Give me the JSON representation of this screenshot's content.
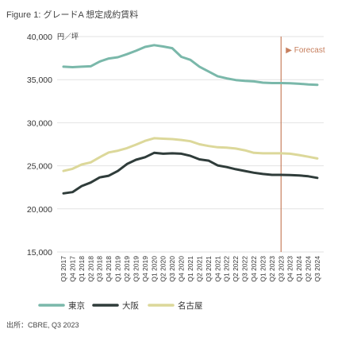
{
  "chart_data": {
    "type": "line",
    "title": "Figure 1: グレードA 想定成約賃料",
    "unit_label": "円／坪",
    "source": "出所：CBRE, Q3 2023",
    "forecast_label": "▶ Forecast",
    "forecast_start": "Q3 2023",
    "ylim": [
      15000,
      40000
    ],
    "yticks": [
      "15,000",
      "20,000",
      "25,000",
      "30,000",
      "35,000",
      "40,000"
    ],
    "ytick_values": [
      15000,
      20000,
      25000,
      30000,
      35000,
      40000
    ],
    "grid": true,
    "legend_position": "bottom",
    "x": [
      "Q3 2017",
      "Q4 2017",
      "Q1 2018",
      "Q2 2018",
      "Q3 2018",
      "Q4 2018",
      "Q1 2019",
      "Q2 2019",
      "Q3 2019",
      "Q4 2019",
      "Q1 2020",
      "Q2 2020",
      "Q3 2020",
      "Q4 2020",
      "Q1 2021",
      "Q2 2021",
      "Q3 2021",
      "Q4 2021",
      "Q1 2022",
      "Q2 2022",
      "Q3 2022",
      "Q4 2022",
      "Q1 2023",
      "Q2 2023",
      "Q3 2023",
      "Q4 2023",
      "Q1 2024",
      "Q2 2024",
      "Q3 2024"
    ],
    "series": [
      {
        "name": "東京",
        "color": "#7ab8aa",
        "values": [
          36500,
          36450,
          36500,
          36550,
          37100,
          37450,
          37600,
          37950,
          38350,
          38800,
          39000,
          38850,
          38650,
          37650,
          37300,
          36500,
          35950,
          35400,
          35150,
          34950,
          34850,
          34800,
          34650,
          34600,
          34600,
          34580,
          34520,
          34450,
          34400
        ]
      },
      {
        "name": "大阪",
        "color": "#2f3c3a",
        "values": [
          21800,
          21950,
          22650,
          23050,
          23650,
          23850,
          24400,
          25200,
          25700,
          26000,
          26500,
          26400,
          26450,
          26400,
          26150,
          25750,
          25600,
          25050,
          24850,
          24600,
          24400,
          24200,
          24050,
          23950,
          23950,
          23930,
          23880,
          23780,
          23600
        ]
      },
      {
        "name": "名古屋",
        "color": "#dcd89a",
        "values": [
          24400,
          24650,
          25150,
          25400,
          26000,
          26550,
          26750,
          27050,
          27450,
          27900,
          28200,
          28150,
          28100,
          28000,
          27850,
          27500,
          27300,
          27150,
          27100,
          27000,
          26800,
          26500,
          26450,
          26450,
          26450,
          26400,
          26250,
          26050,
          25850
        ]
      }
    ],
    "forecast_line_color": "#c77f5e"
  }
}
